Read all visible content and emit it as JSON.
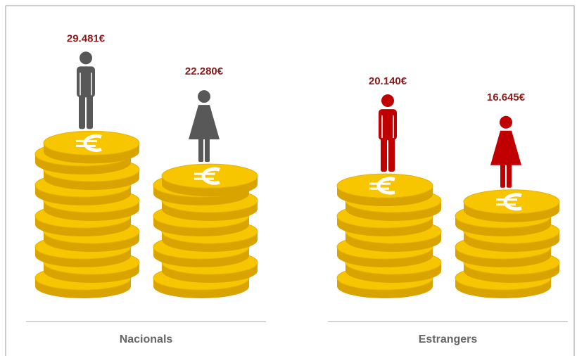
{
  "chart_data": {
    "type": "pictograph",
    "groups": [
      {
        "name": "Nacionals",
        "color": "#585858",
        "values": [
          29481,
          22280
        ],
        "value_labels": [
          "29.481€",
          "22.280€"
        ]
      },
      {
        "name": "Estrangers",
        "color": "#c00000",
        "values": [
          20140,
          16645
        ],
        "value_labels": [
          "20.140€",
          "16.645€"
        ]
      }
    ]
  }
}
